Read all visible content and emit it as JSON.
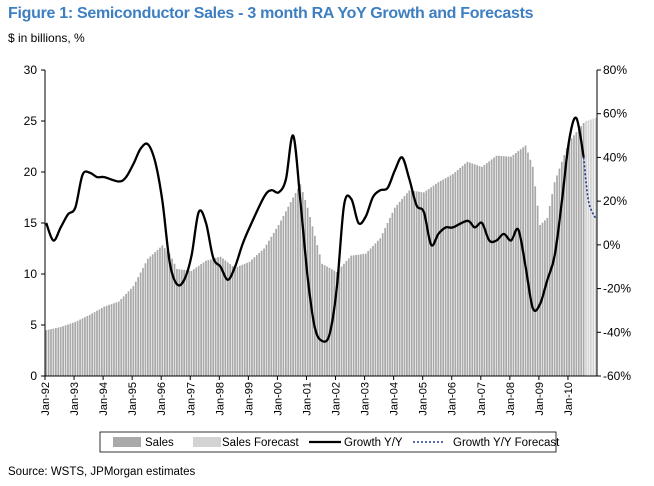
{
  "header": {
    "title": "Figure 1: Semiconductor Sales - 3 month RA YoY Growth and Forecasts",
    "subtitle": "$ in billions, %"
  },
  "footer": {
    "source": "Source: WSTS, JPMorgan estimates"
  },
  "colors": {
    "title": "#3d7fc1",
    "sales_bar": "#a9a9a9",
    "forecast_bar": "#d3d3d3",
    "growth_line": "#000000",
    "forecast_line": "#1f3a93"
  },
  "chart_data": {
    "type": "bar",
    "grid": false,
    "legend_position": "bottom",
    "left_axis": {
      "range": [
        0,
        30
      ],
      "ticks": [
        "0",
        "5",
        "10",
        "15",
        "20",
        "25",
        "30"
      ]
    },
    "right_axis": {
      "range": [
        -60,
        80
      ],
      "ticks": [
        "-60%",
        "-40%",
        "-20%",
        "0%",
        "20%",
        "40%",
        "60%",
        "80%"
      ]
    },
    "x_axis": {
      "start": "Jan-92",
      "end": "Dec-10",
      "ticks": [
        "Jan-92",
        "Jan-93",
        "Jan-94",
        "Jan-95",
        "Jan-96",
        "Jan-97",
        "Jan-98",
        "Jan-99",
        "Jan-00",
        "Jan-01",
        "Jan-02",
        "Jan-03",
        "Jan-04",
        "Jan-05",
        "Jan-06",
        "Jan-07",
        "Jan-08",
        "Jan-09",
        "Jan-10"
      ]
    },
    "legend": [
      "Sales",
      "Sales Forecast",
      "Growth Y/Y",
      "Growth Y/Y Forecast"
    ],
    "sales_keypoints": [
      [
        "1992-01",
        4.5
      ],
      [
        "1992-07",
        4.8
      ],
      [
        "1993-01",
        5.3
      ],
      [
        "1993-07",
        6.0
      ],
      [
        "1994-01",
        6.8
      ],
      [
        "1994-07",
        7.3
      ],
      [
        "1995-01",
        8.8
      ],
      [
        "1995-07",
        11.5
      ],
      [
        "1996-01",
        12.8
      ],
      [
        "1996-04",
        12.0
      ],
      [
        "1996-07",
        10.5
      ],
      [
        "1997-01",
        10.3
      ],
      [
        "1997-07",
        11.3
      ],
      [
        "1998-01",
        11.7
      ],
      [
        "1998-07",
        10.6
      ],
      [
        "1999-01",
        11.2
      ],
      [
        "1999-07",
        12.5
      ],
      [
        "2000-01",
        14.8
      ],
      [
        "2000-07",
        17.5
      ],
      [
        "2000-10",
        18.8
      ],
      [
        "2001-01",
        16.5
      ],
      [
        "2001-07",
        11.0
      ],
      [
        "2002-01",
        10.2
      ],
      [
        "2002-07",
        11.8
      ],
      [
        "2003-01",
        12.0
      ],
      [
        "2003-07",
        13.5
      ],
      [
        "2004-01",
        16.5
      ],
      [
        "2004-07",
        18.2
      ],
      [
        "2005-01",
        18.0
      ],
      [
        "2005-07",
        19.0
      ],
      [
        "2006-01",
        19.8
      ],
      [
        "2006-07",
        21.0
      ],
      [
        "2007-01",
        20.5
      ],
      [
        "2007-07",
        21.6
      ],
      [
        "2008-01",
        21.5
      ],
      [
        "2008-07",
        22.6
      ],
      [
        "2008-10",
        20.5
      ],
      [
        "2009-01",
        14.8
      ],
      [
        "2009-04",
        15.5
      ],
      [
        "2009-07",
        19.0
      ],
      [
        "2010-01",
        23.0
      ],
      [
        "2010-07",
        24.8
      ]
    ],
    "forecast_keypoints": [
      [
        "2010-08",
        25.0
      ],
      [
        "2010-12",
        25.3
      ]
    ],
    "growth_keypoints": [
      [
        "1992-01",
        10
      ],
      [
        "1992-04",
        2
      ],
      [
        "1992-07",
        8
      ],
      [
        "1992-10",
        14
      ],
      [
        "1993-01",
        17
      ],
      [
        "1993-04",
        32
      ],
      [
        "1993-07",
        33
      ],
      [
        "1993-10",
        31
      ],
      [
        "1994-01",
        31
      ],
      [
        "1994-07",
        29
      ],
      [
        "1994-10",
        31
      ],
      [
        "1995-01",
        37
      ],
      [
        "1995-04",
        44
      ],
      [
        "1995-07",
        46
      ],
      [
        "1995-10",
        38
      ],
      [
        "1996-01",
        20
      ],
      [
        "1996-04",
        -8
      ],
      [
        "1996-07",
        -18
      ],
      [
        "1996-10",
        -16
      ],
      [
        "1997-01",
        -5
      ],
      [
        "1997-04",
        15
      ],
      [
        "1997-07",
        10
      ],
      [
        "1997-10",
        -6
      ],
      [
        "1998-01",
        -10
      ],
      [
        "1998-04",
        -16
      ],
      [
        "1998-07",
        -10
      ],
      [
        "1998-10",
        0
      ],
      [
        "1999-01",
        8
      ],
      [
        "1999-07",
        22
      ],
      [
        "1999-10",
        25
      ],
      [
        "2000-01",
        24
      ],
      [
        "2000-04",
        30
      ],
      [
        "2000-07",
        50
      ],
      [
        "2000-10",
        20
      ],
      [
        "2001-01",
        -15
      ],
      [
        "2001-04",
        -38
      ],
      [
        "2001-07",
        -44
      ],
      [
        "2001-10",
        -41
      ],
      [
        "2002-01",
        -20
      ],
      [
        "2002-04",
        18
      ],
      [
        "2002-07",
        21
      ],
      [
        "2002-10",
        10
      ],
      [
        "2003-01",
        13
      ],
      [
        "2003-04",
        22
      ],
      [
        "2003-07",
        25
      ],
      [
        "2003-10",
        26
      ],
      [
        "2004-01",
        34
      ],
      [
        "2004-04",
        40
      ],
      [
        "2004-07",
        30
      ],
      [
        "2004-10",
        18
      ],
      [
        "2005-01",
        15
      ],
      [
        "2005-04",
        0
      ],
      [
        "2005-07",
        5
      ],
      [
        "2005-10",
        8
      ],
      [
        "2006-01",
        8
      ],
      [
        "2006-07",
        11
      ],
      [
        "2006-10",
        8
      ],
      [
        "2007-01",
        10
      ],
      [
        "2007-04",
        2
      ],
      [
        "2007-07",
        2
      ],
      [
        "2007-10",
        5
      ],
      [
        "2008-01",
        2
      ],
      [
        "2008-04",
        7
      ],
      [
        "2008-07",
        -10
      ],
      [
        "2008-10",
        -29
      ],
      [
        "2009-01",
        -27
      ],
      [
        "2009-04",
        -16
      ],
      [
        "2009-07",
        -5
      ],
      [
        "2009-10",
        20
      ],
      [
        "2010-01",
        48
      ],
      [
        "2010-04",
        58
      ],
      [
        "2010-07",
        40
      ]
    ],
    "growth_forecast_keypoints": [
      [
        "2010-07",
        40
      ],
      [
        "2010-09",
        20
      ],
      [
        "2010-12",
        12
      ]
    ]
  }
}
